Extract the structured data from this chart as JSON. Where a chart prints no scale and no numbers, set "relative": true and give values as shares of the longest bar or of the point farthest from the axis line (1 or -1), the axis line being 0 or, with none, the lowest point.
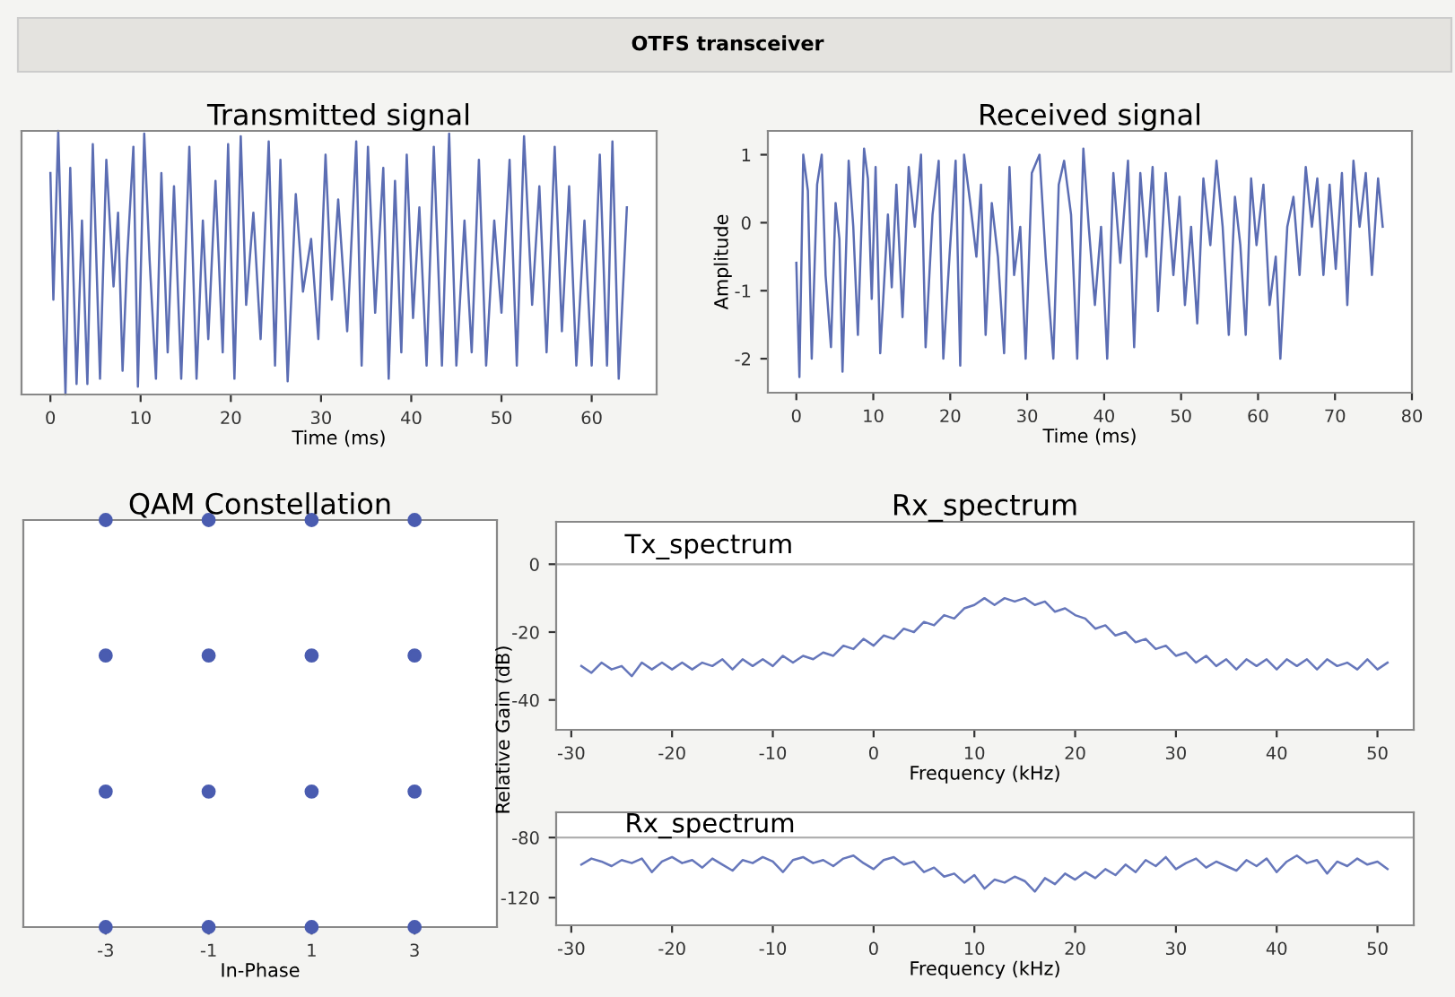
{
  "chart_data": [
    {
      "type": "line",
      "title": "Transmitted signal",
      "xlabel": "Time (ms)",
      "annotations": [
        "OTFS transceiver"
      ],
      "relative": true,
      "tick_labels": "x",
      "xlim": [
        -3.2,
        67.2
      ],
      "xticks": [
        0,
        10,
        20,
        30,
        40,
        50,
        60
      ],
      "x": [
        0.0,
        0.33,
        0.87,
        1.67,
        2.2,
        2.9,
        3.5,
        4.1,
        4.7,
        5.5,
        6.2,
        7.0,
        7.5,
        8.0,
        8.5,
        9.2,
        9.7,
        10.4,
        11.0,
        11.7,
        12.3,
        13.0,
        13.7,
        14.5,
        15.4,
        16.2,
        16.9,
        17.5,
        18.3,
        19.1,
        19.7,
        20.4,
        21.1,
        21.7,
        22.5,
        23.3,
        24.2,
        24.9,
        25.5,
        26.3,
        27.2,
        28.0,
        28.9,
        29.7,
        30.5,
        31.2,
        31.9,
        32.9,
        33.9,
        34.5,
        35.2,
        36.0,
        36.9,
        37.5,
        38.2,
        38.9,
        39.5,
        40.2,
        40.9,
        41.7,
        42.5,
        43.4,
        44.2,
        45.0,
        45.9,
        46.7,
        47.5,
        48.3,
        49.2,
        50.0,
        50.9,
        51.7,
        52.5,
        53.4,
        54.2,
        55.0,
        55.9,
        56.7,
        57.5,
        58.3,
        59.2,
        60.0,
        60.9,
        61.7,
        62.3,
        63.0,
        63.9
      ],
      "series": [
        {
          "color": "#5b6db3",
          "values": [
            0.84,
            0.36,
            1.0,
            0.0,
            0.86,
            0.04,
            0.66,
            0.04,
            0.95,
            0.06,
            0.89,
            0.41,
            0.69,
            0.09,
            0.51,
            0.94,
            0.03,
            0.99,
            0.51,
            0.06,
            0.84,
            0.16,
            0.79,
            0.06,
            0.94,
            0.06,
            0.66,
            0.21,
            0.81,
            0.16,
            0.95,
            0.06,
            0.98,
            0.34,
            0.69,
            0.21,
            0.96,
            0.11,
            0.89,
            0.05,
            0.76,
            0.39,
            0.59,
            0.21,
            0.91,
            0.36,
            0.74,
            0.24,
            0.96,
            0.11,
            0.94,
            0.31,
            0.86,
            0.06,
            0.81,
            0.16,
            0.91,
            0.29,
            0.71,
            0.11,
            0.94,
            0.11,
            0.99,
            0.11,
            0.66,
            0.16,
            0.89,
            0.11,
            0.66,
            0.31,
            0.89,
            0.11,
            0.98,
            0.34,
            0.79,
            0.16,
            0.94,
            0.24,
            0.79,
            0.11,
            0.66,
            0.11,
            0.91,
            0.11,
            0.96,
            0.06,
            0.71
          ]
        }
      ]
    },
    {
      "type": "line",
      "title": "Received signal",
      "xlabel": "Time (ms)",
      "ylabel": "Amplitude",
      "xlim": [
        -3.7,
        80
      ],
      "xticks": [
        0,
        10,
        20,
        30,
        40,
        50,
        60,
        70,
        80
      ],
      "ylim": [
        -2.5,
        1.35
      ],
      "yticks": [
        1,
        0,
        -1,
        -2
      ],
      "x": [
        0.0,
        0.4,
        0.9,
        1.5,
        2.0,
        2.7,
        3.3,
        3.8,
        4.5,
        5.1,
        5.6,
        6.0,
        6.8,
        7.4,
        8.0,
        8.8,
        9.3,
        9.8,
        10.3,
        10.9,
        11.9,
        12.4,
        13.0,
        13.8,
        14.6,
        15.4,
        16.2,
        16.8,
        17.7,
        18.5,
        19.1,
        19.9,
        20.7,
        21.3,
        21.8,
        22.6,
        23.4,
        24.0,
        24.6,
        25.4,
        26.2,
        27.0,
        27.7,
        28.3,
        29.1,
        29.8,
        30.6,
        31.6,
        32.4,
        33.4,
        34.1,
        34.8,
        35.7,
        36.5,
        37.3,
        38.0,
        38.8,
        39.6,
        40.4,
        41.2,
        42.1,
        43.1,
        43.9,
        44.7,
        45.5,
        46.3,
        47.0,
        48.0,
        49.0,
        49.8,
        50.5,
        51.3,
        52.1,
        52.9,
        53.8,
        54.6,
        55.4,
        56.2,
        57.0,
        57.7,
        58.4,
        59.1,
        59.8,
        60.7,
        61.5,
        62.3,
        62.9,
        63.8,
        64.6,
        65.4,
        66.2,
        67.0,
        67.7,
        68.5,
        69.3,
        70.1,
        70.9,
        71.6,
        72.4,
        73.2,
        74.0,
        74.8,
        75.6,
        76.2
      ],
      "series": [
        {
          "color": "#5b6db3",
          "values": [
            -0.59,
            -2.27,
            1.0,
            0.47,
            -2.0,
            0.56,
            1.0,
            -0.77,
            -1.83,
            0.29,
            -0.24,
            -2.19,
            0.91,
            -0.06,
            -1.65,
            1.09,
            0.65,
            -1.12,
            0.82,
            -1.92,
            0.12,
            -0.95,
            0.56,
            -1.39,
            0.82,
            -0.06,
            1.0,
            -1.83,
            0.12,
            0.91,
            -2.0,
            -0.5,
            0.91,
            -2.1,
            1.0,
            0.29,
            -0.5,
            0.56,
            -1.65,
            0.29,
            -0.5,
            -1.92,
            0.82,
            -0.77,
            -0.06,
            -2.0,
            0.73,
            1.0,
            -0.5,
            -2.0,
            0.56,
            0.91,
            0.12,
            -2.0,
            1.09,
            -0.06,
            -1.21,
            -0.06,
            -2.0,
            0.73,
            -0.59,
            0.91,
            -1.83,
            0.73,
            -0.5,
            0.82,
            -1.3,
            0.73,
            -0.77,
            0.38,
            -1.21,
            -0.06,
            -1.48,
            0.65,
            -0.33,
            0.91,
            -0.06,
            -1.65,
            0.38,
            -0.33,
            -1.65,
            0.65,
            -0.33,
            0.56,
            -1.21,
            -0.5,
            -2.0,
            -0.06,
            0.38,
            -0.77,
            0.82,
            -0.06,
            0.65,
            -0.77,
            0.56,
            -0.68,
            0.73,
            -1.21,
            0.91,
            -0.06,
            0.73,
            -0.77,
            0.65,
            -0.06
          ]
        }
      ]
    },
    {
      "type": "scatter",
      "title": "QAM Constellation",
      "xlabel": "In-Phase",
      "relative": true,
      "tick_labels": "x",
      "marker": "circle",
      "xlim": [
        -4.6,
        4.6
      ],
      "xticks": [
        -3,
        -1,
        1,
        3
      ],
      "x": [
        -3,
        -1,
        1,
        3,
        -3,
        -1,
        1,
        3,
        -3,
        -1,
        1,
        3,
        -3,
        -1,
        1,
        3
      ],
      "series": [
        {
          "color": "#4a5cb0",
          "values": [
            1,
            1,
            1,
            1,
            0.667,
            0.667,
            0.667,
            0.667,
            0.333,
            0.333,
            0.333,
            0.333,
            0,
            0,
            0,
            0
          ]
        }
      ]
    },
    {
      "type": "line",
      "title": "Rx_spectrum",
      "xlabel": "Frequency (kHz)",
      "ylabel": "Relative Gain (dB)",
      "annotations": [
        "Tx_spectrum"
      ],
      "xlim": [
        -31.5,
        53.6
      ],
      "xticks": [
        -30,
        -20,
        -10,
        0,
        10,
        20,
        30,
        40,
        50
      ],
      "ylim": [
        -48.8,
        12.5
      ],
      "yticks": [
        0,
        -20,
        -40
      ],
      "ref_lines": [
        {
          "axis": "y",
          "value": 0,
          "color": "#b0b0b0"
        }
      ],
      "x": [
        -29,
        -28,
        -27,
        -26,
        -25,
        -24,
        -23,
        -22,
        -21,
        -20,
        -19,
        -18,
        -17,
        -16,
        -15,
        -14,
        -13,
        -12,
        -11,
        -10,
        -9,
        -8,
        -7,
        -6,
        -5,
        -4,
        -3,
        -2,
        -1,
        0,
        1,
        2,
        3,
        4,
        5,
        6,
        7,
        8,
        9,
        10,
        11,
        12,
        13,
        14,
        15,
        16,
        17,
        18,
        19,
        20,
        21,
        22,
        23,
        24,
        25,
        26,
        27,
        28,
        29,
        30,
        31,
        32,
        33,
        34,
        35,
        36,
        37,
        38,
        39,
        40,
        41,
        42,
        43,
        44,
        45,
        46,
        47,
        48,
        49,
        50,
        51
      ],
      "series": [
        {
          "color": "#6677bb",
          "values": [
            -30,
            -32,
            -29,
            -31,
            -30,
            -33,
            -29,
            -31,
            -29,
            -31,
            -29,
            -31,
            -29,
            -30,
            -28,
            -31,
            -28,
            -30,
            -28,
            -30,
            -27,
            -29,
            -27,
            -28,
            -26,
            -27,
            -24,
            -25,
            -22,
            -24,
            -21,
            -22,
            -19,
            -20,
            -17,
            -18,
            -15,
            -16,
            -13,
            -12,
            -10,
            -12,
            -10,
            -11,
            -10,
            -12,
            -11,
            -14,
            -13,
            -15,
            -16,
            -19,
            -18,
            -21,
            -20,
            -23,
            -22,
            -25,
            -24,
            -27,
            -26,
            -29,
            -27,
            -30,
            -28,
            -31,
            -28,
            -30,
            -28,
            -31,
            -28,
            -30,
            -28,
            -31,
            -28,
            -30,
            -29,
            -31,
            -28,
            -31,
            -29
          ]
        }
      ]
    },
    {
      "type": "line",
      "xlabel": "Frequency (kHz)",
      "annotations": [
        "Rx_spectrum"
      ],
      "xlim": [
        -31.5,
        53.6
      ],
      "xticks": [
        -30,
        -20,
        -10,
        0,
        10,
        20,
        30,
        40,
        50
      ],
      "ylim": [
        -138.4,
        -63.2
      ],
      "yticks": [
        -80,
        -120
      ],
      "ref_lines": [
        {
          "axis": "y",
          "value": -80,
          "color": "#b0b0b0"
        }
      ],
      "x": [
        -29,
        -28,
        -27,
        -26,
        -25,
        -24,
        -23,
        -22,
        -21,
        -20,
        -19,
        -18,
        -17,
        -16,
        -15,
        -14,
        -13,
        -12,
        -11,
        -10,
        -9,
        -8,
        -7,
        -6,
        -5,
        -4,
        -3,
        -2,
        -1,
        0,
        1,
        2,
        3,
        4,
        5,
        6,
        7,
        8,
        9,
        10,
        11,
        12,
        13,
        14,
        15,
        16,
        17,
        18,
        19,
        20,
        21,
        22,
        23,
        24,
        25,
        26,
        27,
        28,
        29,
        30,
        31,
        32,
        33,
        34,
        35,
        36,
        37,
        38,
        39,
        40,
        41,
        42,
        43,
        44,
        45,
        46,
        47,
        48,
        49,
        50,
        51
      ],
      "series": [
        {
          "color": "#6677bb",
          "values": [
            -98,
            -94,
            -96,
            -99,
            -95,
            -97,
            -94,
            -103,
            -96,
            -93,
            -97,
            -95,
            -100,
            -94,
            -98,
            -102,
            -95,
            -97,
            -93,
            -96,
            -103,
            -95,
            -93,
            -97,
            -95,
            -99,
            -94,
            -92,
            -97,
            -101,
            -95,
            -93,
            -98,
            -96,
            -103,
            -100,
            -106,
            -104,
            -110,
            -105,
            -114,
            -108,
            -110,
            -106,
            -109,
            -116,
            -107,
            -111,
            -104,
            -108,
            -103,
            -107,
            -101,
            -105,
            -98,
            -103,
            -95,
            -99,
            -93,
            -101,
            -97,
            -94,
            -100,
            -96,
            -99,
            -102,
            -95,
            -99,
            -94,
            -103,
            -96,
            -92,
            -97,
            -95,
            -104,
            -96,
            -99,
            -94,
            -98,
            -96,
            -101
          ]
        }
      ]
    }
  ]
}
